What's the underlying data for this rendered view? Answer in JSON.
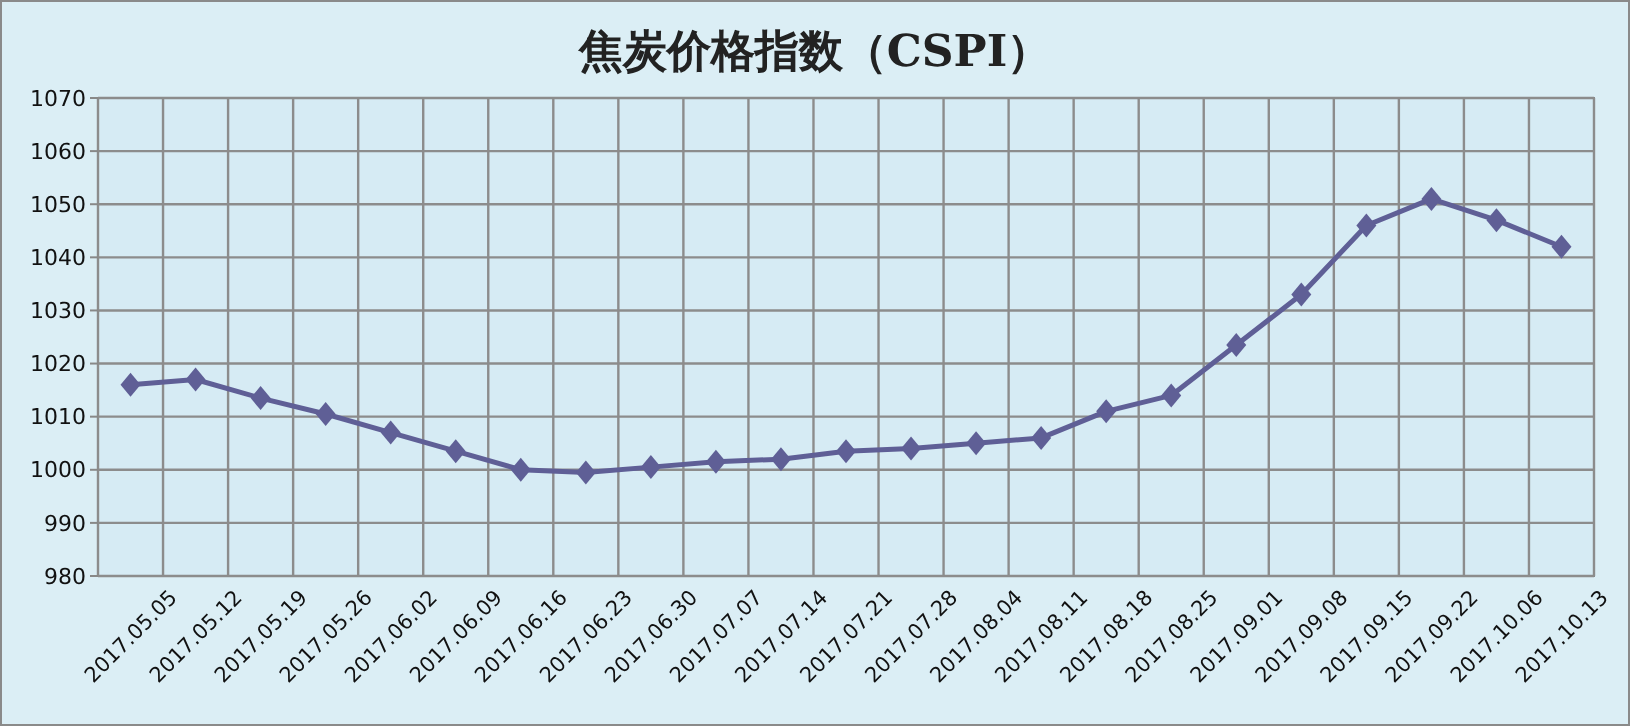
{
  "chart_data": {
    "type": "line",
    "title": "焦炭价格指数（CSPI）",
    "categories": [
      "2017.05.05",
      "2017.05.12",
      "2017.05.19",
      "2017.05.26",
      "2017.06.02",
      "2017.06.09",
      "2017.06.16",
      "2017.06.23",
      "2017.06.30",
      "2017.07.07",
      "2017.07.14",
      "2017.07.21",
      "2017.07.28",
      "2017.08.04",
      "2017.08.11",
      "2017.08.18",
      "2017.08.25",
      "2017.09.01",
      "2017.09.08",
      "2017.09.15",
      "2017.09.22",
      "2017.10.06",
      "2017.10.13"
    ],
    "series": [
      {
        "color": "#5f5f96",
        "values": [
          1016,
          1017,
          1013.5,
          1010.5,
          1007,
          1003.5,
          1000,
          999.5,
          1000.5,
          1001.5,
          1002,
          1003.5,
          1004,
          1005,
          1006,
          1011,
          1014,
          1023.5,
          1033,
          1046,
          1051,
          1047,
          1042
        ]
      }
    ],
    "ylim": [
      980,
      1070
    ],
    "yticks": [
      980,
      990,
      1000,
      1010,
      1020,
      1030,
      1040,
      1050,
      1060,
      1070
    ],
    "grid": true,
    "marker": "diamond",
    "line_style": "solid"
  }
}
